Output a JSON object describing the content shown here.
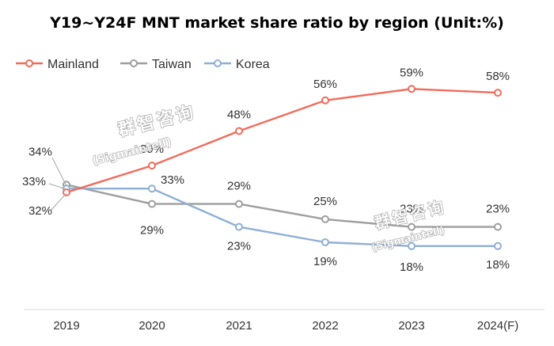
{
  "chart_data": {
    "type": "line",
    "title": "Y19~Y24F MNT market share ratio by region (Unit:%)",
    "xlabel": "",
    "ylabel": "",
    "categories": [
      "2019",
      "2020",
      "2021",
      "2022",
      "2023",
      "2024(F)"
    ],
    "ylim": [
      0,
      70
    ],
    "grid": false,
    "legend_position": "top-left",
    "series": [
      {
        "name": "Mainland",
        "color": "#f26b5b",
        "values": [
          32,
          39,
          48,
          56,
          59,
          58
        ],
        "labels": [
          "32%",
          "39%",
          "48%",
          "56%",
          "59%",
          "58%"
        ]
      },
      {
        "name": "Taiwan",
        "color": "#9e9e9e",
        "values": [
          34,
          29,
          29,
          25,
          23,
          23
        ],
        "labels": [
          "34%",
          "29%",
          "29%",
          "25%",
          "23%",
          "23%"
        ]
      },
      {
        "name": "Korea",
        "color": "#8eafd6",
        "values": [
          33,
          33,
          23,
          19,
          18,
          18
        ],
        "labels": [
          "33%",
          "33%",
          "23%",
          "19%",
          "18%",
          "18%"
        ]
      }
    ]
  },
  "watermark": {
    "brand": "群智咨询",
    "handle": "(Sigmaintell)"
  }
}
